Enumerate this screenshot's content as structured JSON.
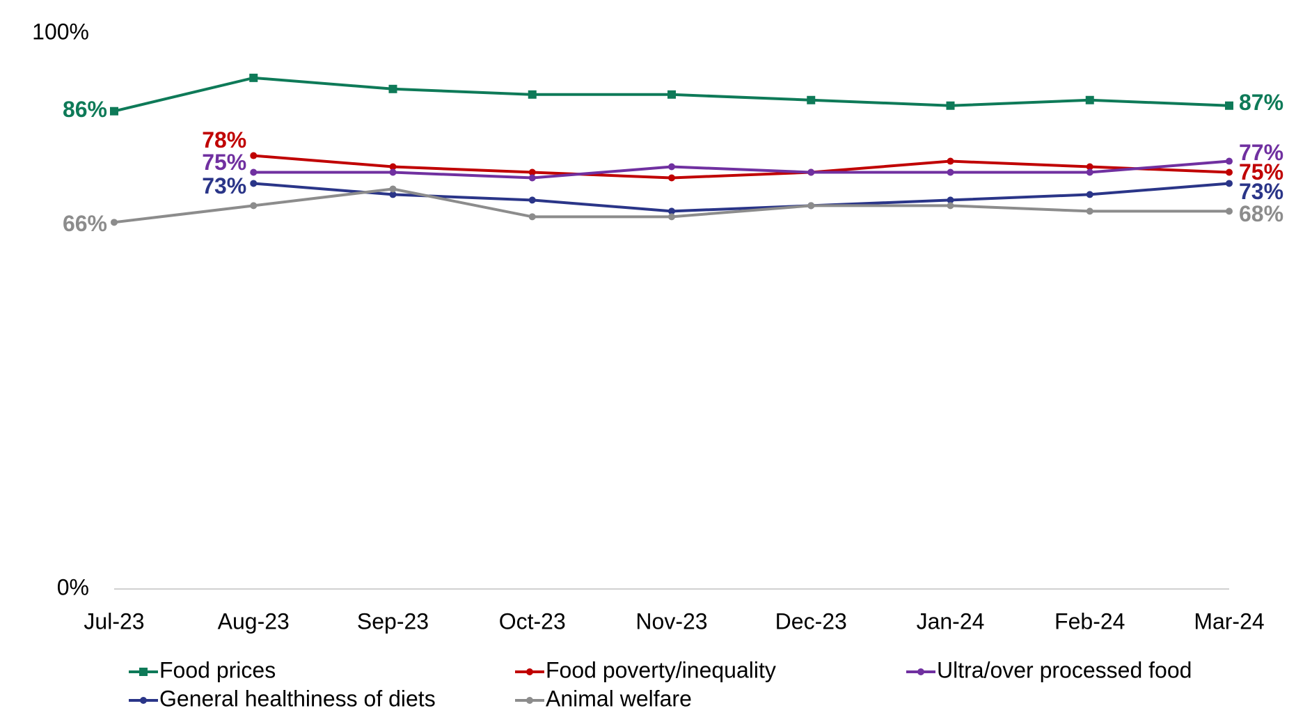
{
  "chart_data": {
    "type": "line",
    "categories": [
      "Jul-23",
      "Aug-23",
      "Sep-23",
      "Oct-23",
      "Nov-23",
      "Dec-23",
      "Jan-24",
      "Feb-24",
      "Mar-24"
    ],
    "ylim": [
      0,
      100
    ],
    "yticks": [
      {
        "value": 0,
        "label": "0%"
      },
      {
        "value": 100,
        "label": "100%"
      }
    ],
    "grid": false,
    "legend": "bottom",
    "series": [
      {
        "name": "Food prices",
        "color": "#0e7a58",
        "marker": "square",
        "values": [
          86,
          92,
          90,
          89,
          89,
          88,
          87,
          88,
          87
        ],
        "value_labels": [
          "86%",
          null,
          null,
          null,
          null,
          null,
          null,
          null,
          "87%"
        ]
      },
      {
        "name": "Food poverty/inequality",
        "color": "#c00000",
        "marker": "circle",
        "values": [
          null,
          78,
          76,
          75,
          74,
          75,
          77,
          76,
          75
        ],
        "value_labels": [
          null,
          "78%",
          null,
          null,
          null,
          null,
          null,
          null,
          "75%"
        ]
      },
      {
        "name": "Ultra/over processed food",
        "color": "#7030a0",
        "marker": "circle",
        "values": [
          null,
          75,
          75,
          74,
          76,
          75,
          75,
          75,
          77
        ],
        "value_labels": [
          null,
          "75%",
          null,
          null,
          null,
          null,
          null,
          null,
          "77%"
        ]
      },
      {
        "name": "General healthiness of diets",
        "color": "#2a3588",
        "marker": "circle",
        "values": [
          null,
          73,
          71,
          70,
          68,
          69,
          70,
          71,
          73
        ],
        "value_labels": [
          null,
          "73%",
          null,
          null,
          null,
          null,
          null,
          null,
          "73%"
        ]
      },
      {
        "name": "Animal welfare",
        "color": "#8c8c8c",
        "marker": "circle",
        "values": [
          66,
          69,
          72,
          67,
          67,
          69,
          69,
          68,
          68
        ],
        "value_labels": [
          "66%",
          null,
          null,
          null,
          null,
          null,
          null,
          null,
          "68%"
        ]
      }
    ]
  }
}
